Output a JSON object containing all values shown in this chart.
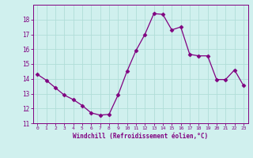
{
  "x": [
    0,
    1,
    2,
    3,
    4,
    5,
    6,
    7,
    8,
    9,
    10,
    11,
    12,
    13,
    14,
    15,
    16,
    17,
    18,
    19,
    20,
    21,
    22,
    23
  ],
  "y": [
    14.3,
    13.9,
    13.4,
    12.9,
    12.6,
    12.2,
    11.7,
    11.55,
    11.6,
    12.9,
    14.5,
    15.9,
    17.0,
    18.4,
    18.35,
    17.3,
    17.5,
    15.65,
    15.55,
    15.55,
    13.95,
    13.95,
    14.6,
    13.55
  ],
  "line_color": "#800080",
  "marker": "D",
  "marker_size": 2.5,
  "bg_color": "#d0f0ee",
  "grid_color": "#b0ddd8",
  "xlabel": "Windchill (Refroidissement éolien,°C)",
  "xlabel_color": "#800080",
  "tick_color": "#800080",
  "spine_color": "#800080",
  "xlim": [
    -0.5,
    23.5
  ],
  "ylim": [
    11,
    19
  ],
  "yticks": [
    11,
    12,
    13,
    14,
    15,
    16,
    17,
    18
  ],
  "xticks": [
    0,
    1,
    2,
    3,
    4,
    5,
    6,
    7,
    8,
    9,
    10,
    11,
    12,
    13,
    14,
    15,
    16,
    17,
    18,
    19,
    20,
    21,
    22,
    23
  ]
}
